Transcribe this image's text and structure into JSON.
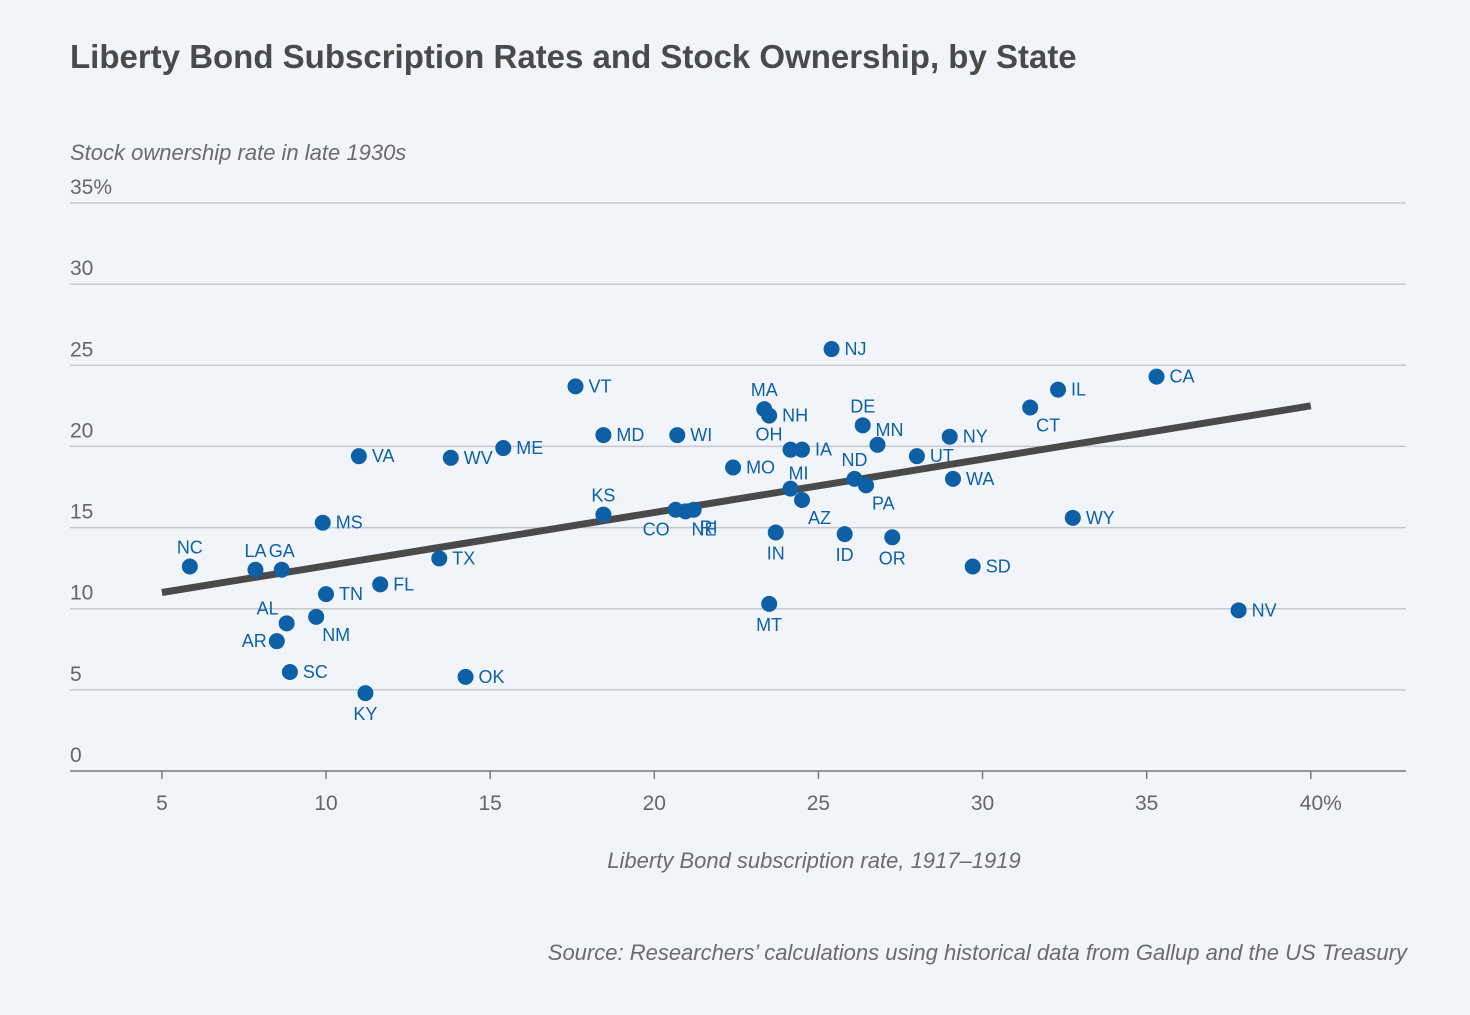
{
  "chart_data": {
    "type": "scatter",
    "title": "Liberty Bond Subscription Rates and Stock Ownership, by State",
    "xlabel": "Liberty Bond subscription rate, 1917–1919",
    "ylabel": "Stock ownership rate in late 1930s",
    "source": "Source: Researchers’ calculations using historical data from Gallup and the US Treasury",
    "xlim": [
      2.2,
      42.9
    ],
    "ylim": [
      0,
      35
    ],
    "x_ticks": [
      {
        "value": 5,
        "label": "5"
      },
      {
        "value": 10,
        "label": "10"
      },
      {
        "value": 15,
        "label": "15"
      },
      {
        "value": 20,
        "label": "20"
      },
      {
        "value": 25,
        "label": "25"
      },
      {
        "value": 30,
        "label": "30"
      },
      {
        "value": 35,
        "label": "35"
      },
      {
        "value": 40,
        "label": "40%"
      }
    ],
    "y_ticks": [
      {
        "value": 0,
        "label": "0"
      },
      {
        "value": 5,
        "label": "5"
      },
      {
        "value": 10,
        "label": "10"
      },
      {
        "value": 15,
        "label": "15"
      },
      {
        "value": 20,
        "label": "20"
      },
      {
        "value": 25,
        "label": "25"
      },
      {
        "value": 30,
        "label": "30"
      },
      {
        "value": 35,
        "label": "35%"
      }
    ],
    "grid": true,
    "point_color": "#0d5fa6",
    "trend_color": "#4a4a4a",
    "trend_line": {
      "x": [
        5,
        40
      ],
      "y": [
        11.0,
        22.5
      ]
    },
    "points": [
      {
        "state": "NC",
        "x": 5.85,
        "y": 12.6,
        "label_pos": "above"
      },
      {
        "state": "LA",
        "x": 7.85,
        "y": 12.4,
        "label_pos": "above"
      },
      {
        "state": "GA",
        "x": 8.65,
        "y": 12.4,
        "label_pos": "above"
      },
      {
        "state": "AL",
        "x": 8.8,
        "y": 9.1,
        "label_pos": "above-left"
      },
      {
        "state": "AR",
        "x": 8.5,
        "y": 8.0,
        "label_pos": "left"
      },
      {
        "state": "SC",
        "x": 8.9,
        "y": 6.1,
        "label_pos": "right"
      },
      {
        "state": "NM",
        "x": 9.7,
        "y": 9.5,
        "label_pos": "below-right"
      },
      {
        "state": "MS",
        "x": 9.9,
        "y": 15.3,
        "label_pos": "right"
      },
      {
        "state": "TN",
        "x": 10.0,
        "y": 10.9,
        "label_pos": "right"
      },
      {
        "state": "VA",
        "x": 11.0,
        "y": 19.4,
        "label_pos": "right"
      },
      {
        "state": "KY",
        "x": 11.2,
        "y": 4.8,
        "label_pos": "below"
      },
      {
        "state": "FL",
        "x": 11.65,
        "y": 11.5,
        "label_pos": "right"
      },
      {
        "state": "TX",
        "x": 13.45,
        "y": 13.1,
        "label_pos": "right"
      },
      {
        "state": "WV",
        "x": 13.8,
        "y": 19.3,
        "label_pos": "right"
      },
      {
        "state": "OK",
        "x": 14.25,
        "y": 5.8,
        "label_pos": "right"
      },
      {
        "state": "ME",
        "x": 15.4,
        "y": 19.9,
        "label_pos": "right"
      },
      {
        "state": "VT",
        "x": 17.6,
        "y": 23.7,
        "label_pos": "right"
      },
      {
        "state": "KS",
        "x": 18.45,
        "y": 15.8,
        "label_pos": "above"
      },
      {
        "state": "MD",
        "x": 18.45,
        "y": 20.7,
        "label_pos": "right"
      },
      {
        "state": "WI",
        "x": 20.7,
        "y": 20.7,
        "label_pos": "right"
      },
      {
        "state": "CO",
        "x": 20.65,
        "y": 16.1,
        "label_pos": "below-left"
      },
      {
        "state": "NE",
        "x": 20.95,
        "y": 16.0,
        "label_pos": "below-right"
      },
      {
        "state": "RI",
        "x": 21.2,
        "y": 16.1,
        "label_pos": "below-right"
      },
      {
        "state": "MO",
        "x": 22.4,
        "y": 18.7,
        "label_pos": "right"
      },
      {
        "state": "MA",
        "x": 23.35,
        "y": 22.3,
        "label_pos": "above"
      },
      {
        "state": "NH",
        "x": 23.5,
        "y": 21.9,
        "label_pos": "right"
      },
      {
        "state": "MT",
        "x": 23.5,
        "y": 10.3,
        "label_pos": "below"
      },
      {
        "state": "IN",
        "x": 23.7,
        "y": 14.7,
        "label_pos": "below"
      },
      {
        "state": "OH",
        "x": 24.15,
        "y": 19.8,
        "label_pos": "above-left"
      },
      {
        "state": "MI",
        "x": 24.15,
        "y": 17.4,
        "label_pos": "above-right"
      },
      {
        "state": "IA",
        "x": 24.5,
        "y": 19.8,
        "label_pos": "right"
      },
      {
        "state": "AZ",
        "x": 24.5,
        "y": 16.7,
        "label_pos": "below-right"
      },
      {
        "state": "NJ",
        "x": 25.4,
        "y": 26.0,
        "label_pos": "right"
      },
      {
        "state": "ID",
        "x": 25.8,
        "y": 14.6,
        "label_pos": "below"
      },
      {
        "state": "ND",
        "x": 26.1,
        "y": 18.0,
        "label_pos": "above"
      },
      {
        "state": "DE",
        "x": 26.35,
        "y": 21.3,
        "label_pos": "above"
      },
      {
        "state": "PA",
        "x": 26.45,
        "y": 17.6,
        "label_pos": "below-right"
      },
      {
        "state": "MN",
        "x": 26.8,
        "y": 20.1,
        "label_pos": "above-right"
      },
      {
        "state": "OR",
        "x": 27.25,
        "y": 14.4,
        "label_pos": "below"
      },
      {
        "state": "UT",
        "x": 28.0,
        "y": 19.4,
        "label_pos": "right"
      },
      {
        "state": "NY",
        "x": 29.0,
        "y": 20.6,
        "label_pos": "right"
      },
      {
        "state": "WA",
        "x": 29.1,
        "y": 18.0,
        "label_pos": "right"
      },
      {
        "state": "SD",
        "x": 29.7,
        "y": 12.6,
        "label_pos": "right"
      },
      {
        "state": "CT",
        "x": 31.45,
        "y": 22.4,
        "label_pos": "below-right"
      },
      {
        "state": "IL",
        "x": 32.3,
        "y": 23.5,
        "label_pos": "right"
      },
      {
        "state": "WY",
        "x": 32.75,
        "y": 15.6,
        "label_pos": "right"
      },
      {
        "state": "CA",
        "x": 35.3,
        "y": 24.3,
        "label_pos": "right"
      },
      {
        "state": "NV",
        "x": 37.8,
        "y": 9.9,
        "label_pos": "right"
      }
    ]
  }
}
